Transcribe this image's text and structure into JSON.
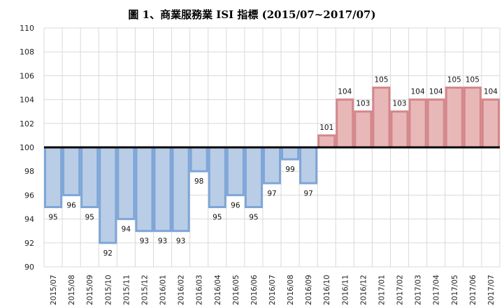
{
  "chart_data": {
    "type": "bar",
    "title": "圖 1、商業服務業 ISI 指標 (2015/07~2017/07)",
    "xlabel": "",
    "ylabel": "",
    "baseline": 100,
    "ylim": [
      90,
      110
    ],
    "yticks": [
      90,
      92,
      94,
      96,
      98,
      100,
      102,
      104,
      106,
      108,
      110
    ],
    "grid": true,
    "categories": [
      "2015/07",
      "2015/08",
      "2015/09",
      "2015/10",
      "2015/11",
      "2015/12",
      "2016/01",
      "2016/02",
      "2016/03",
      "2016/04",
      "2016/05",
      "2016/06",
      "2016/07",
      "2016/08",
      "2016/09",
      "2016/10",
      "2016/11",
      "2016/12",
      "2017/01",
      "2017/02",
      "2017/03",
      "2017/04",
      "2017/05",
      "2017/06",
      "2017/07"
    ],
    "values": [
      95,
      96,
      95,
      92,
      94,
      93,
      93,
      93,
      98,
      95,
      96,
      95,
      97,
      99,
      97,
      101,
      104,
      103,
      105,
      103,
      104,
      104,
      105,
      105,
      104
    ],
    "colors": {
      "below_fill": "#b9cde6",
      "below_stroke": "#7ea6d8",
      "above_fill": "#e8b8b8",
      "above_stroke": "#d4878b",
      "baseline": "#000000",
      "grid": "#d9d9d9"
    }
  }
}
